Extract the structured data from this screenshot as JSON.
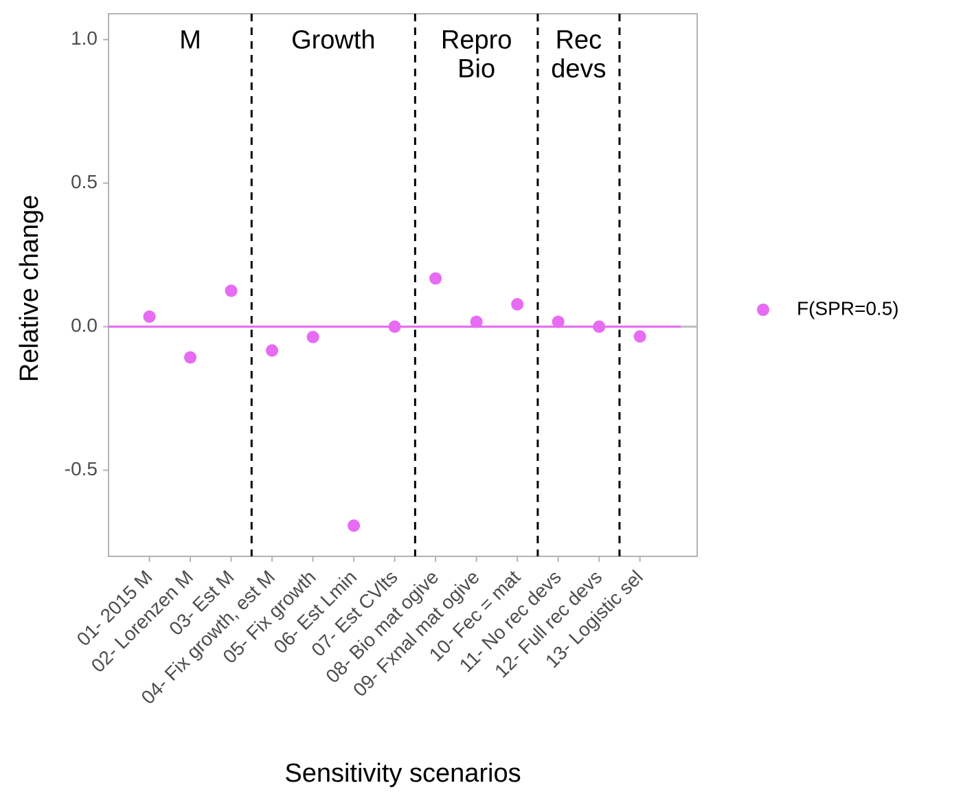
{
  "chart_data": {
    "type": "scatter",
    "xlabel": "Sensitivity scenarios",
    "ylabel": "Relative change",
    "ylim": [
      -0.8,
      1.09
    ],
    "yticks": [
      -0.5,
      0.0,
      0.5,
      1.0
    ],
    "ytick_labels": [
      "-0.5",
      "0.0",
      "0.5",
      "1.0"
    ],
    "categories": [
      "01- 2015 M",
      "02- Lorenzen M",
      "03- Est M",
      "04- Fix growth, est M",
      "05- Fix growth",
      "06- Est Lmin",
      "07- Est CVlts",
      "08- Bio mat ogive",
      "09- Fxnal mat ogive",
      "10- Fec = mat",
      "11- No rec devs",
      "12- Full rec devs",
      "13- Logistic sel"
    ],
    "series": [
      {
        "name": "F(SPR=0.5)",
        "color": "#e76bf3",
        "values": [
          0.035,
          -0.107,
          0.125,
          -0.083,
          -0.036,
          -0.693,
          0.0,
          0.168,
          0.017,
          0.078,
          0.017,
          0.0,
          -0.034
        ]
      }
    ],
    "reference_lines": [
      {
        "type": "hline",
        "y": 0.0,
        "color": "#bebebe"
      },
      {
        "type": "hsegment",
        "y": 0.0,
        "color": "#e76bf3",
        "from_category": 1,
        "to_category": 13
      }
    ],
    "group_dividers_after_category": [
      3,
      7,
      10,
      12
    ],
    "groups": [
      {
        "label": "M",
        "first": 1,
        "last": 3
      },
      {
        "label": "Growth",
        "first": 4,
        "last": 7
      },
      {
        "label": "Repro\nBio",
        "first": 8,
        "last": 10
      },
      {
        "label": "Rec\ndevs",
        "first": 11,
        "last": 12
      }
    ],
    "grid": false,
    "legend_position": "right",
    "frame_color": "#b3b3b3",
    "divider_color": "#000000"
  }
}
